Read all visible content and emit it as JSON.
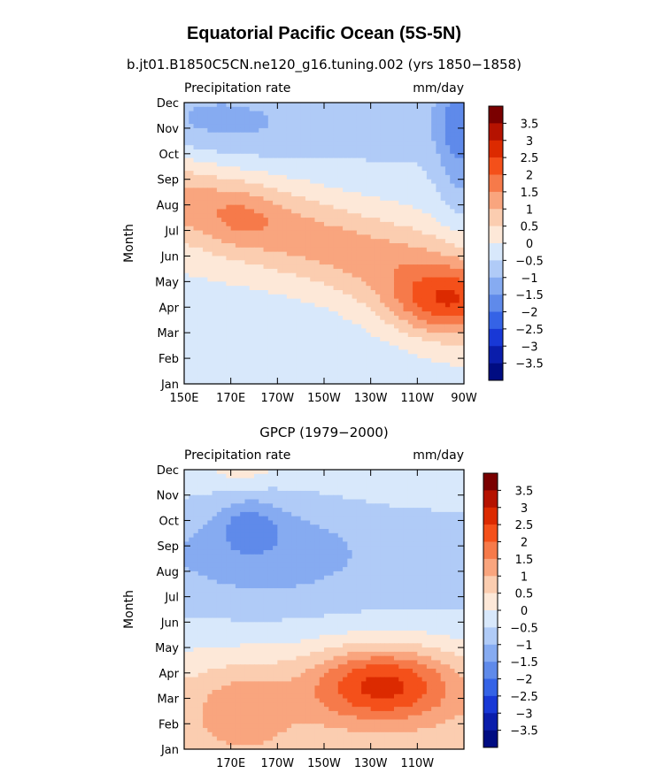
{
  "figure": {
    "title": "Equatorial Pacific Ocean (5S-5N)"
  },
  "colorbar": {
    "levels": [
      "3.5",
      "3",
      "2.5",
      "2",
      "1.5",
      "1",
      "0.5",
      "0",
      "−0.5",
      "−1",
      "−1.5",
      "−2",
      "−2.5",
      "−3",
      "−3.5"
    ],
    "colors": [
      "#7a0000",
      "#b51200",
      "#dc2a00",
      "#f4501a",
      "#f67a4a",
      "#f9a57e",
      "#fbcdb0",
      "#fde8d8",
      "#d8e8fb",
      "#b0cbf7",
      "#86abf1",
      "#5f8aea",
      "#3563e6",
      "#1838d6",
      "#0a1dab",
      "#000c82"
    ]
  },
  "chart_data": [
    {
      "type": "heatmap",
      "title": "b.jt01.B1850C5CN.ne120_g16.tuning.002 (yrs 1850−1858)",
      "left_label": "Precipitation rate",
      "right_label": "mm/day",
      "ylabel": "Month",
      "y_categories": [
        "Jan",
        "Feb",
        "Mar",
        "Apr",
        "May",
        "Jun",
        "Jul",
        "Aug",
        "Sep",
        "Oct",
        "Nov",
        "Dec"
      ],
      "x_ticks": [
        "150E",
        "170E",
        "170W",
        "150W",
        "130W",
        "110W",
        "90W"
      ],
      "x_tick_lon": [
        150,
        170,
        190,
        210,
        230,
        250,
        270
      ],
      "xlim": [
        150,
        270
      ],
      "levels": [
        -3.5,
        -3,
        -2.5,
        -2,
        -1.5,
        -1,
        -0.5,
        0,
        0.5,
        1,
        1.5,
        2,
        2.5,
        3,
        3.5
      ]
    },
    {
      "type": "heatmap",
      "title": "GPCP (1979−2000)",
      "left_label": "Precipitation rate",
      "right_label": "mm/day",
      "ylabel": "Month",
      "y_categories": [
        "Jan",
        "Feb",
        "Mar",
        "Apr",
        "May",
        "Jun",
        "Jul",
        "Aug",
        "Sep",
        "Oct",
        "Nov",
        "Dec"
      ],
      "x_ticks": [
        "170E",
        "170W",
        "150W",
        "130W",
        "110W"
      ],
      "x_tick_lon": [
        170,
        190,
        210,
        230,
        250
      ],
      "xlim": [
        150,
        270
      ],
      "levels": [
        -3.5,
        -3,
        -2.5,
        -2,
        -1.5,
        -1,
        -0.5,
        0,
        0.5,
        1,
        1.5,
        2,
        2.5,
        3,
        3.5
      ]
    }
  ]
}
